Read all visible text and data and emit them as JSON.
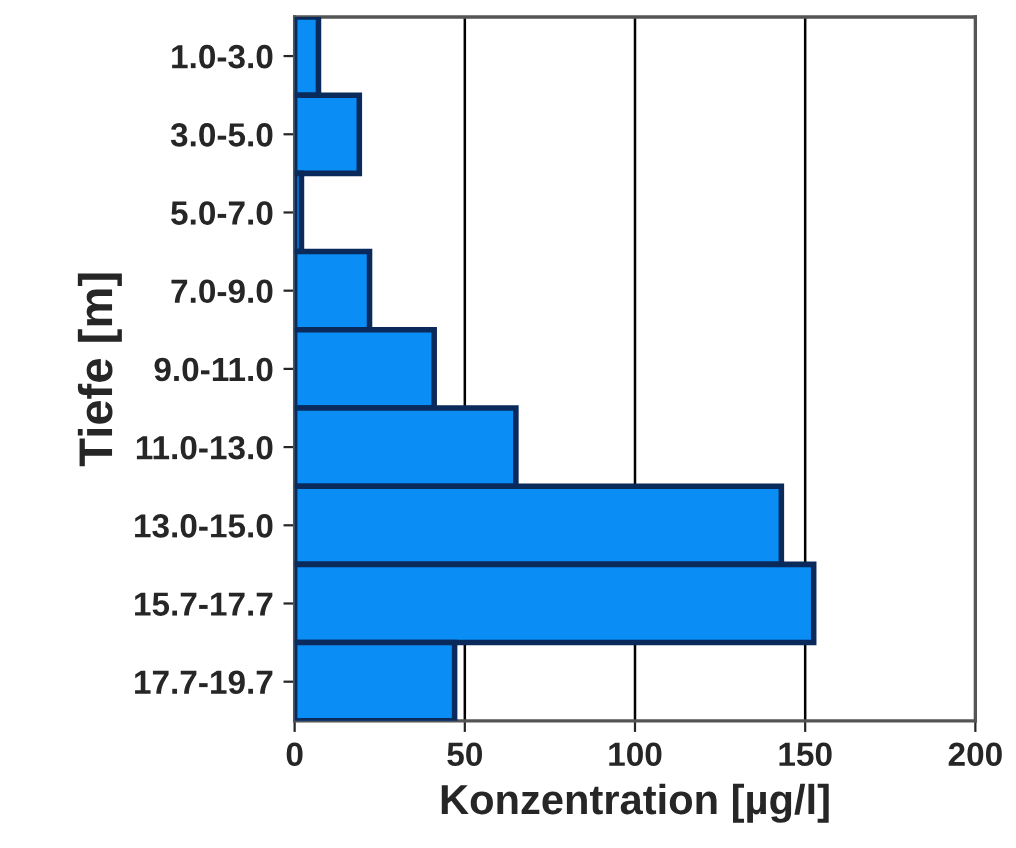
{
  "chart_data": {
    "type": "bar",
    "orientation": "horizontal",
    "xlabel": "Konzentration [µg/l]",
    "ylabel": "Tiefe [m]",
    "categories": [
      "1.0-3.0",
      "3.0-5.0",
      "5.0-7.0",
      "7.0-9.0",
      "9.0-11.0",
      "11.0-13.0",
      "13.0-15.0",
      "15.7-17.7",
      "17.7-19.7"
    ],
    "values": [
      7,
      19,
      2,
      22,
      41,
      65,
      143,
      152.5,
      47
    ],
    "color": "#0a8ef5",
    "xlim": [
      0,
      200
    ],
    "xticks": [
      0,
      50,
      100,
      150,
      200
    ],
    "grid": "x",
    "legend": false
  }
}
